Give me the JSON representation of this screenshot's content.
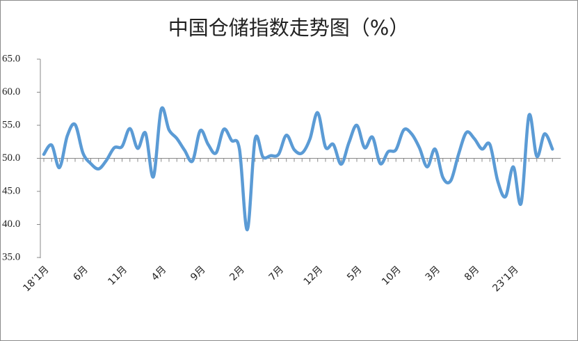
{
  "chart_data": {
    "type": "line",
    "title": "中国仓储指数走势图（%）",
    "categories": [
      "18’1月",
      null,
      null,
      null,
      null,
      "6月",
      null,
      null,
      null,
      null,
      "11月",
      null,
      null,
      null,
      null,
      "4月",
      null,
      null,
      null,
      null,
      "9月",
      null,
      null,
      null,
      null,
      "2月",
      null,
      null,
      null,
      null,
      "7月",
      null,
      null,
      null,
      null,
      "12月",
      null,
      null,
      null,
      null,
      "5月",
      null,
      null,
      null,
      null,
      "10月",
      null,
      null,
      null,
      null,
      "3月",
      null,
      null,
      null,
      null,
      "8月",
      null,
      null,
      null,
      null,
      "23’1月",
      null,
      null,
      null,
      null,
      null
    ],
    "values": [
      50.6,
      52.0,
      48.6,
      53.4,
      55.1,
      50.8,
      49.2,
      48.4,
      49.7,
      51.6,
      51.8,
      54.5,
      51.5,
      53.8,
      47.2,
      57.4,
      54.3,
      53.0,
      51.2,
      49.6,
      54.2,
      52.1,
      50.8,
      54.4,
      52.7,
      51.4,
      39.2,
      52.9,
      50.2,
      50.4,
      50.6,
      53.5,
      51.3,
      50.8,
      52.9,
      56.9,
      51.7,
      52.1,
      49.1,
      52.4,
      55.0,
      51.6,
      53.2,
      49.2,
      51.0,
      51.3,
      54.3,
      53.7,
      51.6,
      48.7,
      51.4,
      47.1,
      46.6,
      50.6,
      53.9,
      53.0,
      51.4,
      52.1,
      46.6,
      44.2,
      48.7,
      43.2,
      56.5,
      50.3,
      53.7,
      51.4
    ],
    "color": "#5b9bd5",
    "ylim": [
      35,
      65
    ],
    "yticks": [
      {
        "value": 35,
        "label": "35.0"
      },
      {
        "value": 40,
        "label": "40.0"
      },
      {
        "value": 45,
        "label": "45.0"
      },
      {
        "value": 50,
        "label": "50.0"
      },
      {
        "value": 55,
        "label": "55.0"
      },
      {
        "value": 60,
        "label": "60.0"
      },
      {
        "value": 65,
        "label": "65.0"
      }
    ],
    "x_axis_at": 50
  }
}
